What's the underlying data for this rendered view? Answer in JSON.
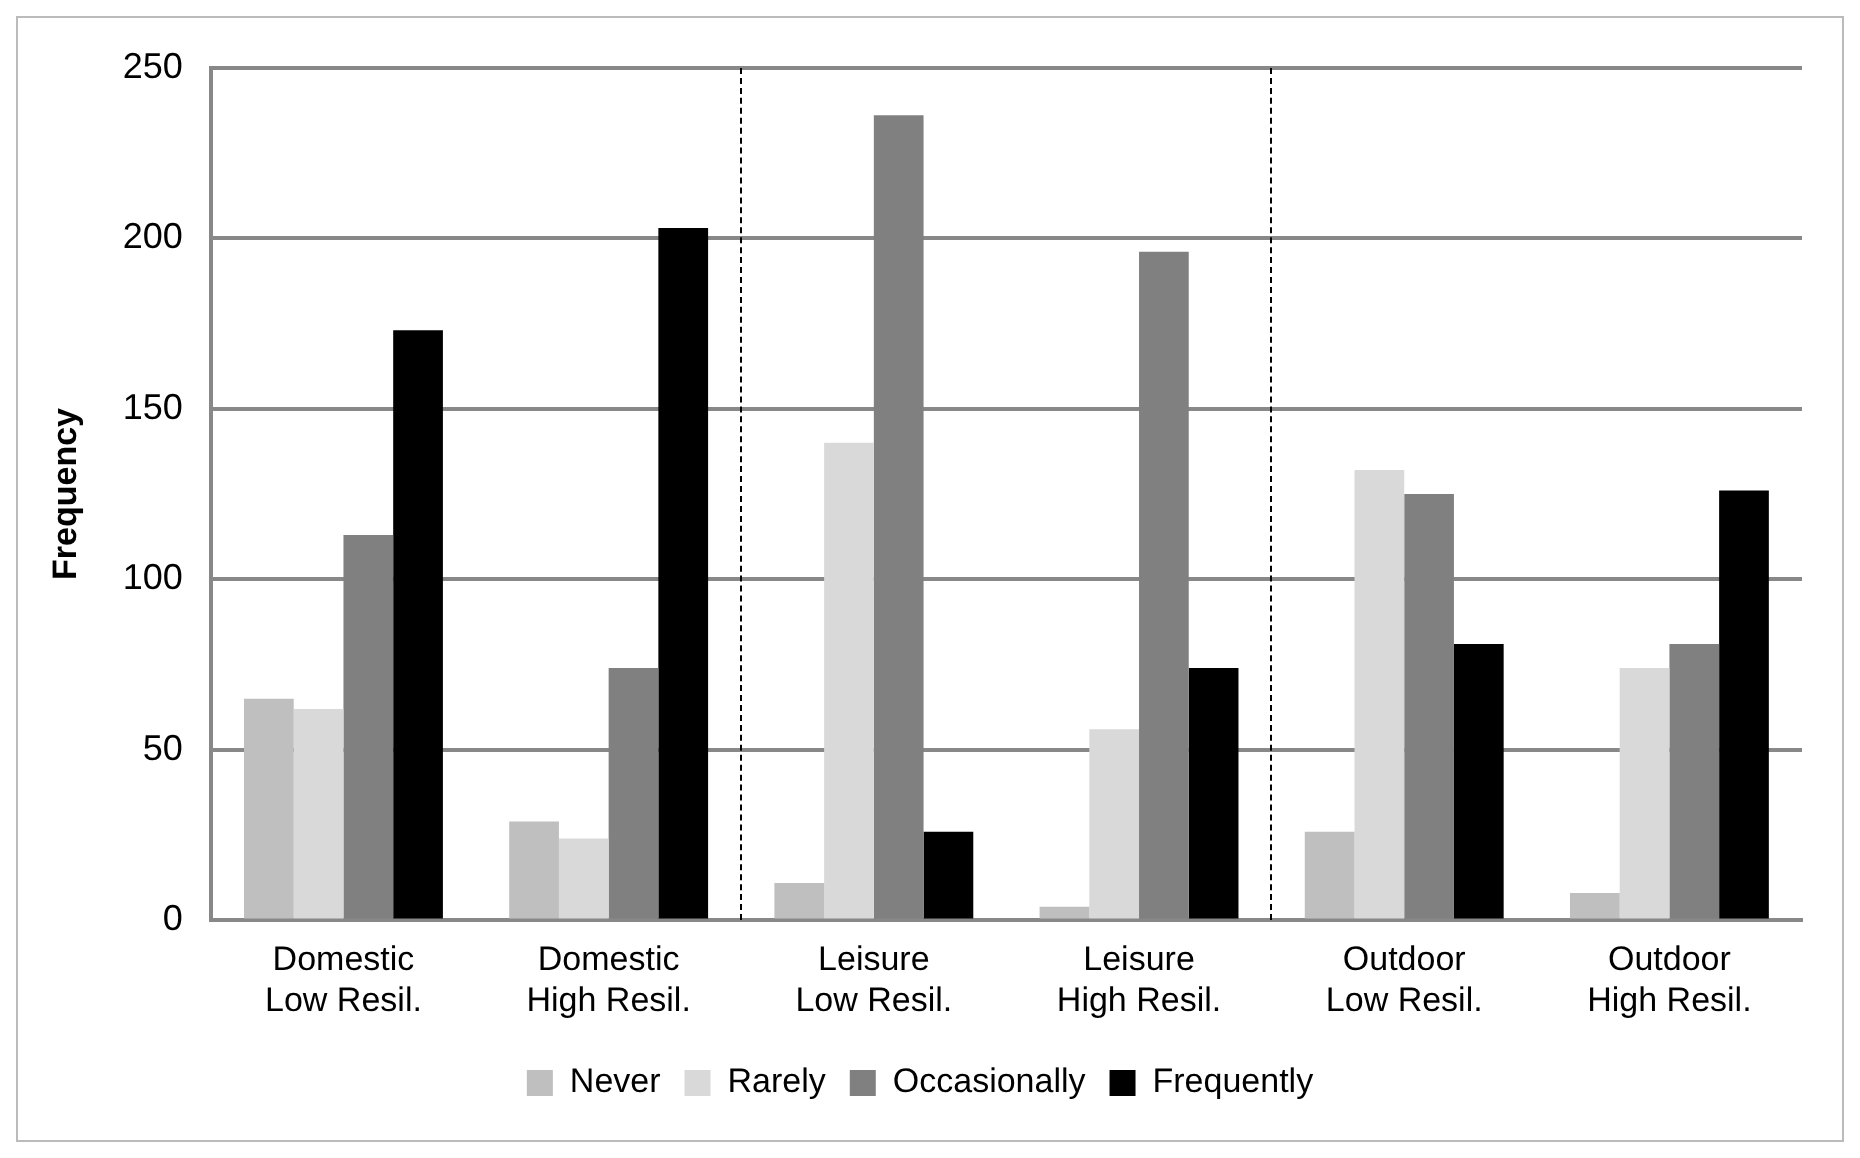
{
  "chart_data": {
    "type": "bar",
    "ylabel": "Frequency",
    "categories": [
      "Domestic\nLow Resil.",
      "Domestic\nHigh Resil.",
      "Leisure\nLow Resil.",
      "Leisure\nHigh Resil.",
      "Outdoor\nLow Resil.",
      "Outdoor\nHigh Resil."
    ],
    "series": [
      {
        "name": "Never",
        "color": "#bfbfbf",
        "values": [
          65,
          29,
          11,
          4,
          26,
          8
        ]
      },
      {
        "name": "Rarely",
        "color": "#d9d9d9",
        "values": [
          62,
          24,
          140,
          56,
          132,
          74
        ]
      },
      {
        "name": "Occasionally",
        "color": "#808080",
        "values": [
          113,
          74,
          236,
          196,
          125,
          81
        ]
      },
      {
        "name": "Frequently",
        "color": "#000000",
        "values": [
          173,
          203,
          26,
          74,
          81,
          126
        ]
      }
    ],
    "ylim": [
      0,
      250
    ],
    "yticks": [
      0,
      50,
      100,
      150,
      200,
      250
    ],
    "grid": "y",
    "legend": "bottom"
  }
}
